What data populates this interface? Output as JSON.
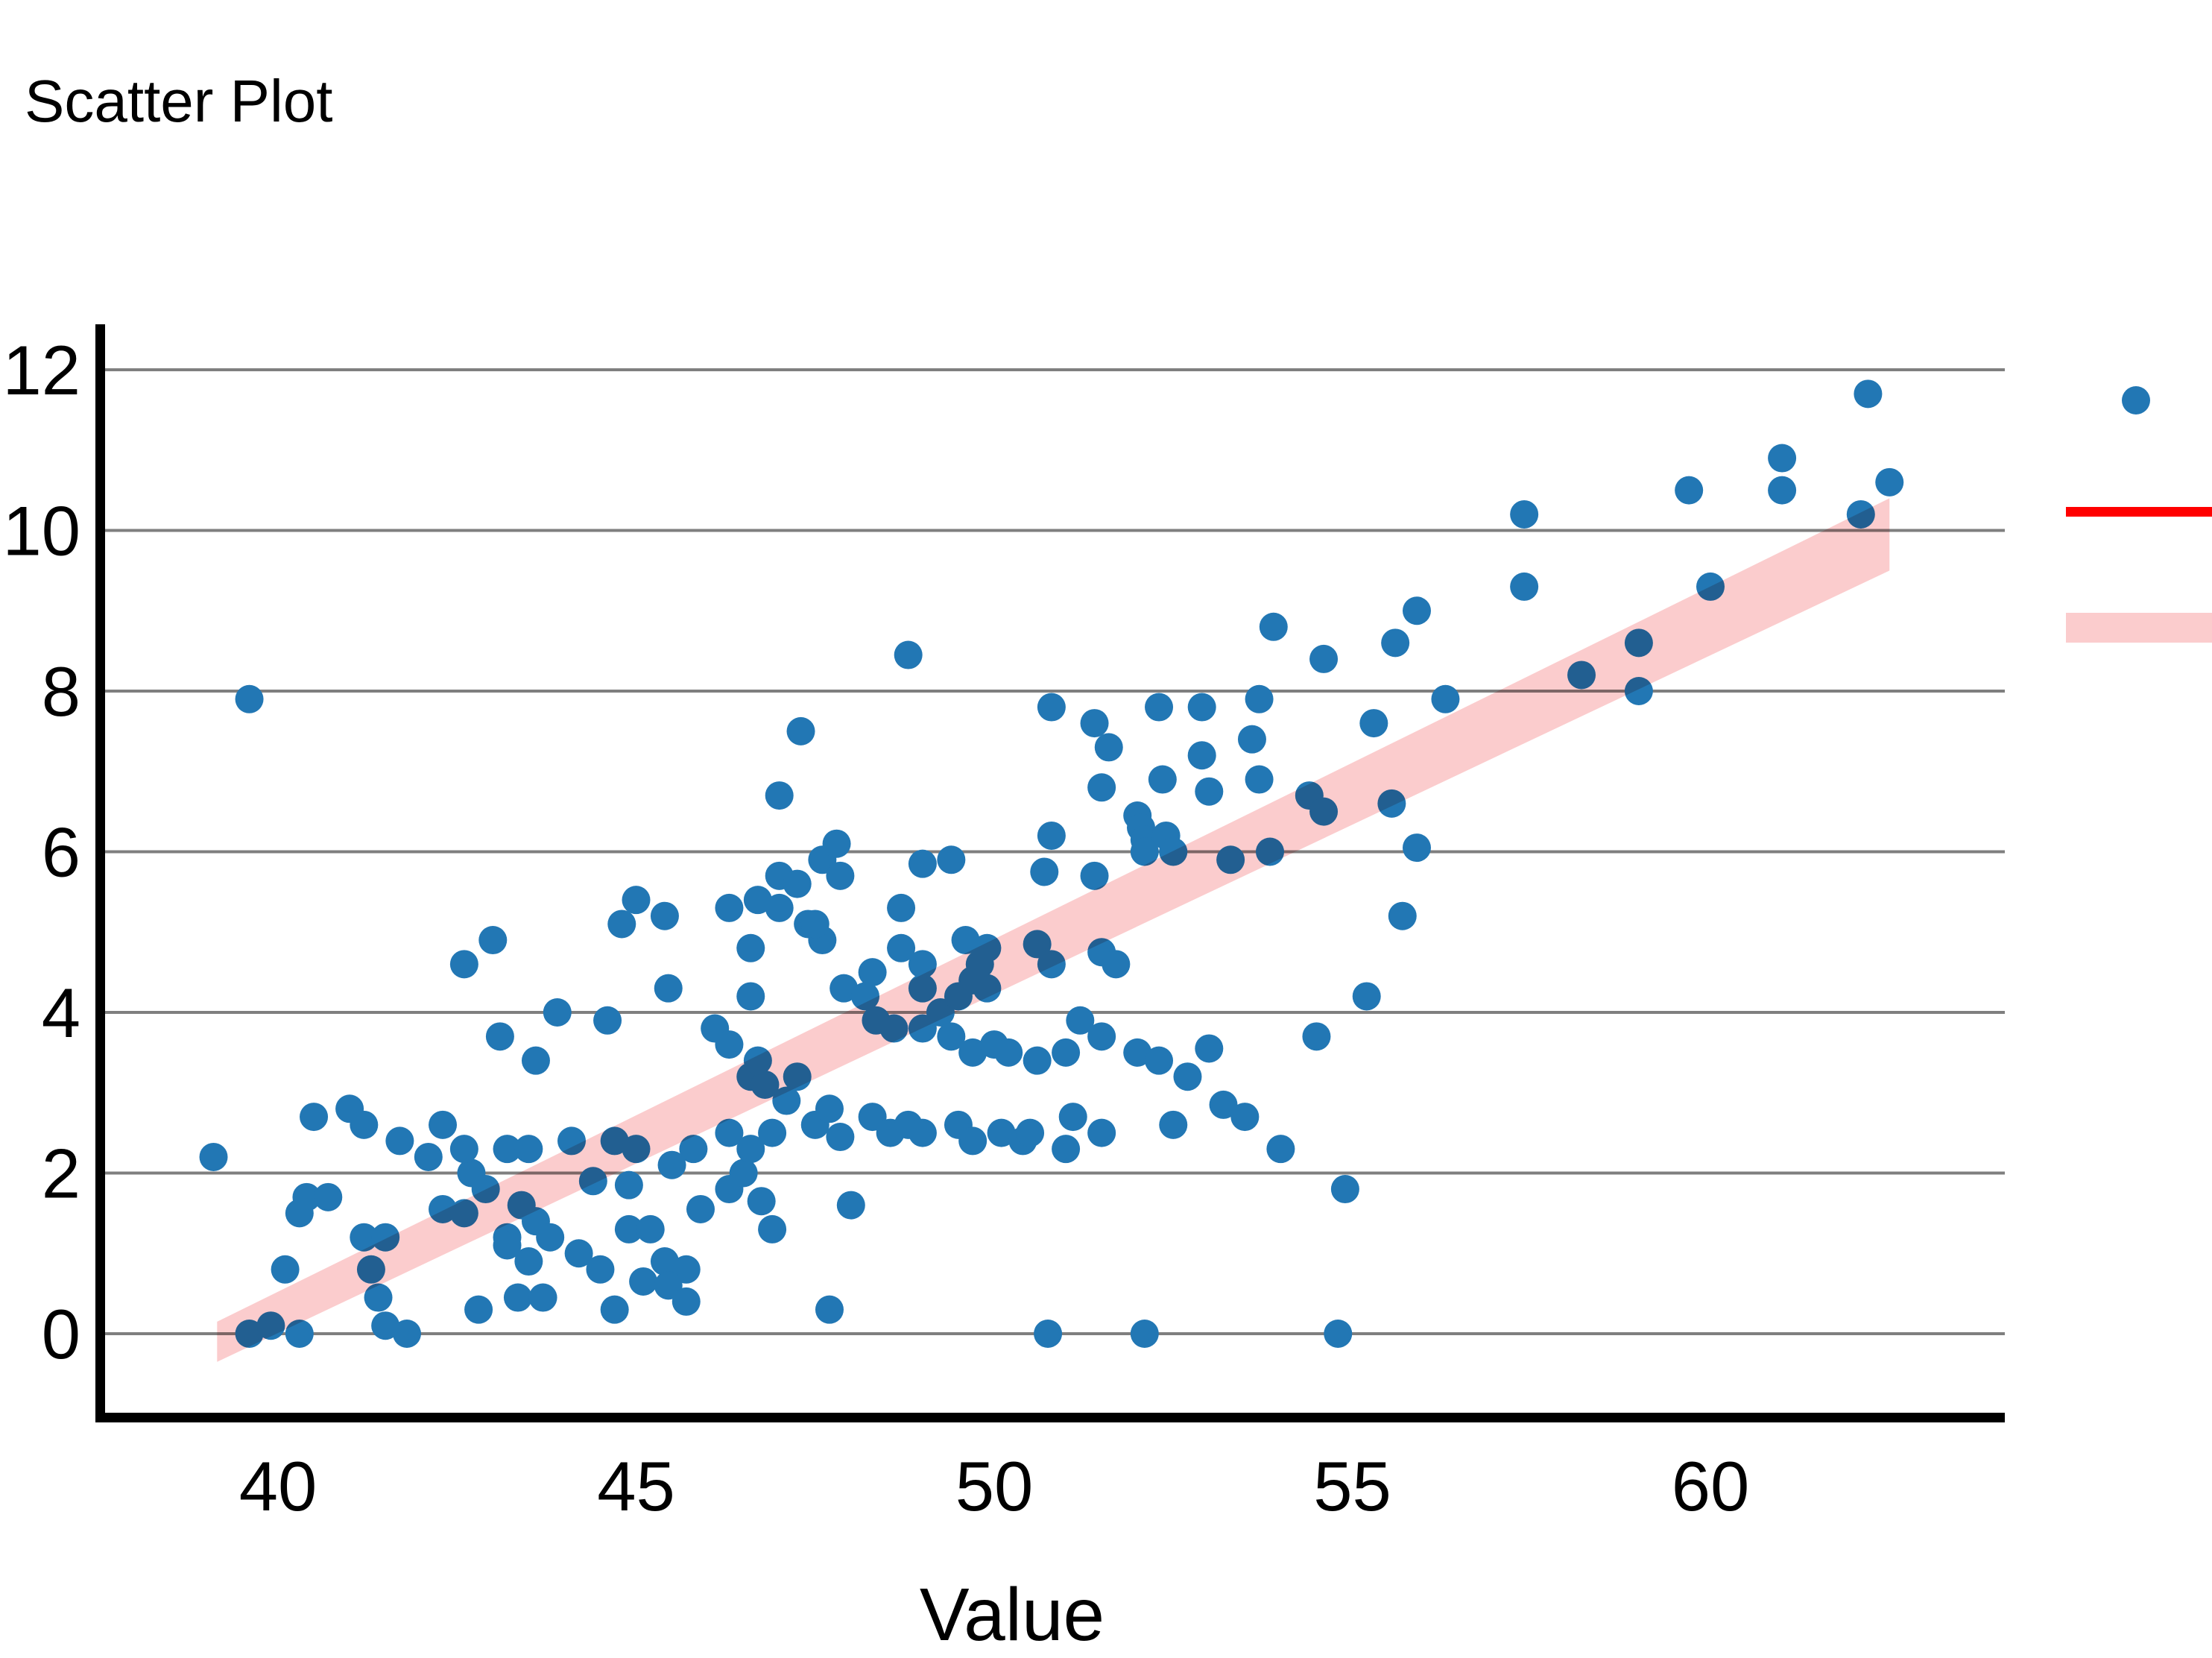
{
  "title": "Scatter Plot",
  "chart_data": {
    "type": "scatter",
    "title": "Scatter Plot",
    "xlabel": "Value",
    "ylabel": "",
    "xlim": [
      37.5,
      64.1
    ],
    "ylim": [
      -1.05,
      12.6
    ],
    "x_ticks": [
      {
        "value": 40,
        "label": "40"
      },
      {
        "value": 45,
        "label": "45"
      },
      {
        "value": 50,
        "label": "50"
      },
      {
        "value": 55,
        "label": "55"
      },
      {
        "value": 60,
        "label": "60"
      }
    ],
    "y_ticks": [
      {
        "value": 0,
        "label": "0"
      },
      {
        "value": 2,
        "label": "2"
      },
      {
        "value": 4,
        "label": "4"
      },
      {
        "value": 6,
        "label": "6"
      },
      {
        "value": 8,
        "label": "8"
      },
      {
        "value": 10,
        "label": "10"
      },
      {
        "value": 12,
        "label": "12"
      }
    ],
    "grid": "horizontal",
    "colors": {
      "point": "#2277b4",
      "trend_line": "#ff0000",
      "trend_band": "#fbcccd",
      "gridline": "#7f7f7f",
      "spine": "#000000",
      "background": "#ffffff"
    },
    "marker_radius_px": 19,
    "trend_band": {
      "upper": [
        [
          39.15,
          0.15
        ],
        [
          62.5,
          10.4
        ]
      ],
      "lower": [
        [
          39.15,
          -0.35
        ],
        [
          62.5,
          9.5
        ]
      ]
    },
    "legend": {
      "position": "outside-right, clipped at image edge",
      "labels_visible": false,
      "entries": [
        {
          "marker": "dot",
          "color": "#2277b4"
        },
        {
          "marker": "line",
          "color": "#ff0000"
        },
        {
          "marker": "band",
          "color": "#fbcccd"
        }
      ]
    },
    "points": [
      [
        39.6,
        0.0
      ],
      [
        39.9,
        0.1
      ],
      [
        40.3,
        0.0
      ],
      [
        41.5,
        0.1
      ],
      [
        41.8,
        0.0
      ],
      [
        40.1,
        0.8
      ],
      [
        40.3,
        1.5
      ],
      [
        40.4,
        1.7
      ],
      [
        40.7,
        1.7
      ],
      [
        41.2,
        1.2
      ],
      [
        41.5,
        1.2
      ],
      [
        41.3,
        0.8
      ],
      [
        41.4,
        0.45
      ],
      [
        42.3,
        1.55
      ],
      [
        42.6,
        1.5
      ],
      [
        42.7,
        2.0
      ],
      [
        42.9,
        1.8
      ],
      [
        42.8,
        0.3
      ],
      [
        43.2,
        1.2
      ],
      [
        43.2,
        1.1
      ],
      [
        43.4,
        1.6
      ],
      [
        43.5,
        0.9
      ],
      [
        43.6,
        1.4
      ],
      [
        43.8,
        1.2
      ],
      [
        43.35,
        0.45
      ],
      [
        43.7,
        0.45
      ],
      [
        44.2,
        1.0
      ],
      [
        44.4,
        1.9
      ],
      [
        44.9,
        1.85
      ],
      [
        44.5,
        0.8
      ],
      [
        44.7,
        0.3
      ],
      [
        44.9,
        1.3
      ],
      [
        45.2,
        1.3
      ],
      [
        45.4,
        0.9
      ],
      [
        45.7,
        0.8
      ],
      [
        45.1,
        0.65
      ],
      [
        45.45,
        0.6
      ],
      [
        45.7,
        0.4
      ],
      [
        45.5,
        2.1
      ],
      [
        45.9,
        1.55
      ],
      [
        46.3,
        1.8
      ],
      [
        46.5,
        2.0
      ],
      [
        46.75,
        1.65
      ],
      [
        46.9,
        1.3
      ],
      [
        47.7,
        0.3
      ],
      [
        48.0,
        1.6
      ],
      [
        50.75,
        0.0
      ],
      [
        52.1,
        0.0
      ],
      [
        54.8,
        0.0
      ],
      [
        54.9,
        1.8
      ],
      [
        39.1,
        2.2
      ],
      [
        42.1,
        2.2
      ],
      [
        42.6,
        2.3
      ],
      [
        43.2,
        2.3
      ],
      [
        43.5,
        2.3
      ],
      [
        44.1,
        2.4
      ],
      [
        44.7,
        2.4
      ],
      [
        45.0,
        2.3
      ],
      [
        45.8,
        2.3
      ],
      [
        40.5,
        2.7
      ],
      [
        41.0,
        2.8
      ],
      [
        41.2,
        2.6
      ],
      [
        41.7,
        2.4
      ],
      [
        42.3,
        2.6
      ],
      [
        46.3,
        2.5
      ],
      [
        46.6,
        2.3
      ],
      [
        46.9,
        2.5
      ],
      [
        47.1,
        2.9
      ],
      [
        47.25,
        3.2
      ],
      [
        47.5,
        2.6
      ],
      [
        47.7,
        2.8
      ],
      [
        47.85,
        2.45
      ],
      [
        48.3,
        2.7
      ],
      [
        48.55,
        2.5
      ],
      [
        48.8,
        2.6
      ],
      [
        49.0,
        2.5
      ],
      [
        49.5,
        2.6
      ],
      [
        49.7,
        2.4
      ],
      [
        50.1,
        2.5
      ],
      [
        50.4,
        2.4
      ],
      [
        50.5,
        2.5
      ],
      [
        51.0,
        2.3
      ],
      [
        51.1,
        2.7
      ],
      [
        51.5,
        2.5
      ],
      [
        52.5,
        2.6
      ],
      [
        53.2,
        2.85
      ],
      [
        53.5,
        2.7
      ],
      [
        54.0,
        2.3
      ],
      [
        46.6,
        3.2
      ],
      [
        46.8,
        3.1
      ],
      [
        52.7,
        3.2
      ],
      [
        43.1,
        3.7
      ],
      [
        43.6,
        3.4
      ],
      [
        43.9,
        4.0
      ],
      [
        44.6,
        3.9
      ],
      [
        45.45,
        4.3
      ],
      [
        46.1,
        3.8
      ],
      [
        46.3,
        3.6
      ],
      [
        46.7,
        3.4
      ],
      [
        46.6,
        4.2
      ],
      [
        47.9,
        4.3
      ],
      [
        48.2,
        4.2
      ],
      [
        48.3,
        4.5
      ],
      [
        48.35,
        3.9
      ],
      [
        48.6,
        3.8
      ],
      [
        49.0,
        3.8
      ],
      [
        49.0,
        4.3
      ],
      [
        49.25,
        4.0
      ],
      [
        49.4,
        3.7
      ],
      [
        49.5,
        4.2
      ],
      [
        49.7,
        3.5
      ],
      [
        49.7,
        4.4
      ],
      [
        49.9,
        4.3
      ],
      [
        50.0,
        3.6
      ],
      [
        50.2,
        3.5
      ],
      [
        50.6,
        3.4
      ],
      [
        51.0,
        3.5
      ],
      [
        51.2,
        3.9
      ],
      [
        51.5,
        3.7
      ],
      [
        52.0,
        3.5
      ],
      [
        52.3,
        3.4
      ],
      [
        53.0,
        3.55
      ],
      [
        54.5,
        3.7
      ],
      [
        55.2,
        4.2
      ],
      [
        42.6,
        4.6
      ],
      [
        43.0,
        4.9
      ],
      [
        45.0,
        5.4
      ],
      [
        44.8,
        5.1
      ],
      [
        45.4,
        5.2
      ],
      [
        46.3,
        5.3
      ],
      [
        46.7,
        5.4
      ],
      [
        46.6,
        4.8
      ],
      [
        47.0,
        5.3
      ],
      [
        47.4,
        5.1
      ],
      [
        47.6,
        4.9
      ],
      [
        47.5,
        5.1
      ],
      [
        48.7,
        4.8
      ],
      [
        48.7,
        5.3
      ],
      [
        49.0,
        4.6
      ],
      [
        49.6,
        4.9
      ],
      [
        49.8,
        4.6
      ],
      [
        49.9,
        4.8
      ],
      [
        50.6,
        4.85
      ],
      [
        50.8,
        4.6
      ],
      [
        51.5,
        4.75
      ],
      [
        51.7,
        4.6
      ],
      [
        55.7,
        5.2
      ],
      [
        47.0,
        6.7
      ],
      [
        47.0,
        5.7
      ],
      [
        47.25,
        5.6
      ],
      [
        47.6,
        5.9
      ],
      [
        47.8,
        6.1
      ],
      [
        47.85,
        5.7
      ],
      [
        49.0,
        5.85
      ],
      [
        49.4,
        5.9
      ],
      [
        50.7,
        5.75
      ],
      [
        50.8,
        6.2
      ],
      [
        51.4,
        5.7
      ],
      [
        51.5,
        6.8
      ],
      [
        52.0,
        6.45
      ],
      [
        52.05,
        6.3
      ],
      [
        52.1,
        6.15
      ],
      [
        52.1,
        6.0
      ],
      [
        52.4,
        6.2
      ],
      [
        52.5,
        6.0
      ],
      [
        52.35,
        6.9
      ],
      [
        53.0,
        6.75
      ],
      [
        53.3,
        5.9
      ],
      [
        53.7,
        6.9
      ],
      [
        53.85,
        6.0
      ],
      [
        54.4,
        6.7
      ],
      [
        54.6,
        6.5
      ],
      [
        55.55,
        6.6
      ],
      [
        55.9,
        6.05
      ],
      [
        51.6,
        7.3
      ],
      [
        52.9,
        7.2
      ],
      [
        53.6,
        7.4
      ],
      [
        47.3,
        7.5
      ],
      [
        48.8,
        8.45
      ],
      [
        50.8,
        7.8
      ],
      [
        51.4,
        7.6
      ],
      [
        52.3,
        7.8
      ],
      [
        52.9,
        7.8
      ],
      [
        53.7,
        7.9
      ],
      [
        53.9,
        8.8
      ],
      [
        54.6,
        8.4
      ],
      [
        55.3,
        7.6
      ],
      [
        55.6,
        8.6
      ],
      [
        55.9,
        9.0
      ],
      [
        56.3,
        7.9
      ],
      [
        39.6,
        7.9
      ],
      [
        57.4,
        10.2
      ],
      [
        57.4,
        9.3
      ],
      [
        58.2,
        8.2
      ],
      [
        59.0,
        8.0
      ],
      [
        59.0,
        8.6
      ],
      [
        59.7,
        10.5
      ],
      [
        60.0,
        9.3
      ],
      [
        61.0,
        10.9
      ],
      [
        61.0,
        10.5
      ],
      [
        62.1,
        10.2
      ],
      [
        62.2,
        11.7
      ],
      [
        62.5,
        10.6
      ]
    ]
  }
}
